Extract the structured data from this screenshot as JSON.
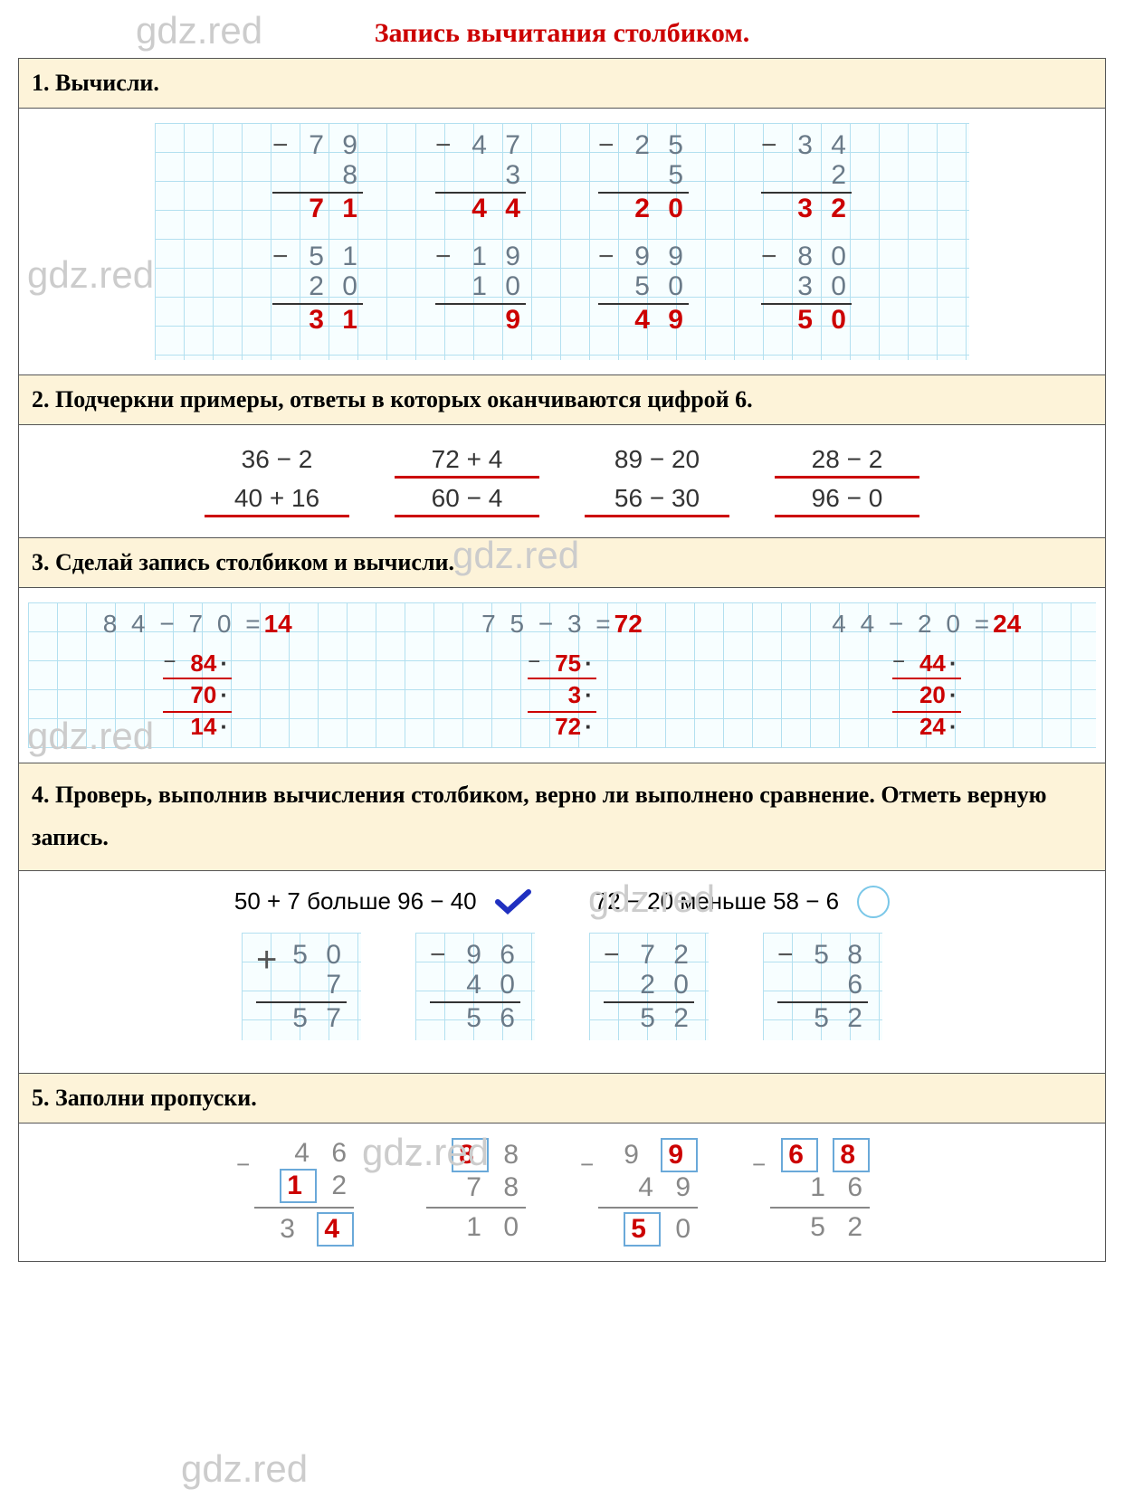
{
  "watermarks": [
    "gdz.red",
    "gdz.red",
    "gdz.red",
    "gdz.red",
    "gdz.red",
    "gdz.red"
  ],
  "title": "Запись вычитания столбиком.",
  "task1": {
    "header": "1. Вычисли.",
    "rows": [
      [
        {
          "a": "7 9",
          "b": "8",
          "ans": "7 1"
        },
        {
          "a": "4 7",
          "b": "3",
          "ans": "4 4"
        },
        {
          "a": "2 5",
          "b": "5",
          "ans": "2 0"
        },
        {
          "a": "3 4",
          "b": "2",
          "ans": "3 2"
        }
      ],
      [
        {
          "a": "5 1",
          "b": "2 0",
          "ans": "3 1"
        },
        {
          "a": "1 9",
          "b": "1 0",
          "ans": "9"
        },
        {
          "a": "9 9",
          "b": "5 0",
          "ans": "4 9"
        },
        {
          "a": "8 0",
          "b": "3 0",
          "ans": "5 0"
        }
      ]
    ]
  },
  "task2": {
    "header": "2. Подчеркни примеры, ответы в которых оканчиваются цифрой 6.",
    "rows": [
      [
        {
          "t": "36  −  2",
          "u": false
        },
        {
          "t": "72  +  4",
          "u": true
        },
        {
          "t": "89  −  20",
          "u": false
        },
        {
          "t": "28  −  2",
          "u": true
        }
      ],
      [
        {
          "t": "40  +  16",
          "u": true
        },
        {
          "t": "60  −  4",
          "u": true
        },
        {
          "t": "56  −  30",
          "u": true
        },
        {
          "t": "96  −  0",
          "u": true
        }
      ]
    ]
  },
  "task3": {
    "header": "3. Сделай запись столбиком и вычисли.",
    "items": [
      {
        "eq_a": "8 4 − 7 0 =",
        "eq_r": "14",
        "s_a": "84",
        "s_b": "70",
        "s_r": "14"
      },
      {
        "eq_a": "7 5 − 3 =",
        "eq_r": "72",
        "s_a": "75",
        "s_b": "3",
        "s_r": "72"
      },
      {
        "eq_a": "4 4 − 2 0 =",
        "eq_r": "24",
        "s_a": "44",
        "s_b": "20",
        "s_r": "24"
      }
    ]
  },
  "task4": {
    "header": "4. Проверь, выполнив вычисления столбиком, верно ли выполнено сравнение. Отметь верную запись.",
    "left": "50  +  7  больше  96  −  40",
    "right": "72  −  20  меньше  58  −  6",
    "cols": [
      {
        "op": "+",
        "a": "5 0",
        "b": "7",
        "r": "5 7"
      },
      {
        "op": "−",
        "a": "9 6",
        "b": "4 0",
        "r": "5 6"
      },
      {
        "op": "−",
        "a": "7 2",
        "b": "2 0",
        "r": "5 2"
      },
      {
        "op": "−",
        "a": "5 8",
        "b": "6",
        "r": "5 2"
      }
    ]
  },
  "task5": {
    "header": "5. Заполни пропуски.",
    "items": [
      {
        "r1": [
          {
            "v": "4",
            "b": false
          },
          {
            "v": "6",
            "b": false
          }
        ],
        "r2": [
          {
            "v": "1",
            "b": true
          },
          {
            "v": "2",
            "b": false
          }
        ],
        "r3": [
          {
            "v": "3",
            "b": false
          },
          {
            "v": "4",
            "b": true
          }
        ]
      },
      {
        "r1": [
          {
            "v": "8",
            "b": true
          },
          {
            "v": "8",
            "b": false
          }
        ],
        "r2": [
          {
            "v": "7",
            "b": false
          },
          {
            "v": "8",
            "b": false
          }
        ],
        "r3": [
          {
            "v": "1",
            "b": false
          },
          {
            "v": "0",
            "b": false
          }
        ]
      },
      {
        "r1": [
          {
            "v": "9",
            "b": false
          },
          {
            "v": "9",
            "b": true
          }
        ],
        "r2": [
          {
            "v": "4",
            "b": false
          },
          {
            "v": "9",
            "b": false
          }
        ],
        "r3": [
          {
            "v": "5",
            "b": true
          },
          {
            "v": "0",
            "b": false
          }
        ]
      },
      {
        "r1": [
          {
            "v": "6",
            "b": true
          },
          {
            "v": "8",
            "b": true
          }
        ],
        "r2": [
          {
            "v": "1",
            "b": false
          },
          {
            "v": "6",
            "b": false
          }
        ],
        "r3": [
          {
            "v": "5",
            "b": false
          },
          {
            "v": "2",
            "b": false
          }
        ]
      }
    ]
  },
  "colors": {
    "accent_red": "#cc0000",
    "task_bg": "#fdf3d9",
    "grid_blue": "#b3e0f0",
    "pencil_grey": "#6a7a88",
    "box_blue": "#6aa9d9"
  }
}
